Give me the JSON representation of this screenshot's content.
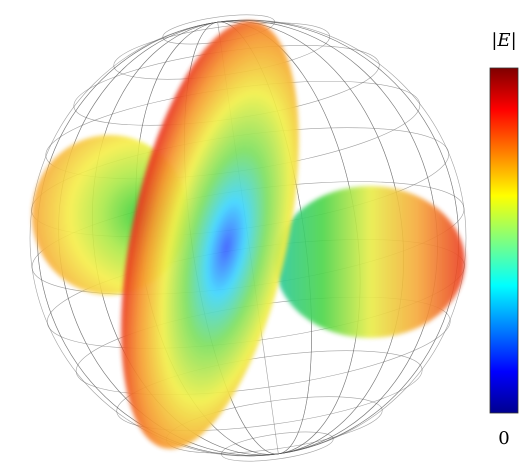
{
  "colorbar": {
    "title": "|E|",
    "min_label": "0"
  }
}
